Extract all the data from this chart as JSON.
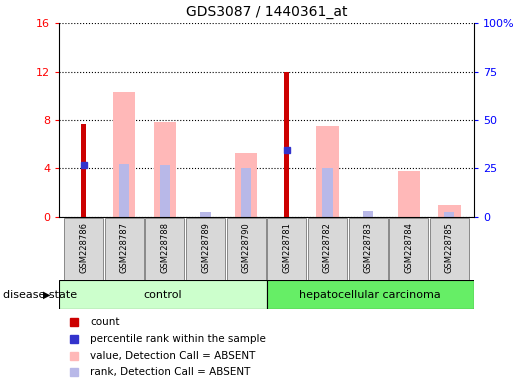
{
  "title": "GDS3087 / 1440361_at",
  "samples": [
    "GSM228786",
    "GSM228787",
    "GSM228788",
    "GSM228789",
    "GSM228790",
    "GSM228781",
    "GSM228782",
    "GSM228783",
    "GSM228784",
    "GSM228785"
  ],
  "groups": [
    "control",
    "control",
    "control",
    "control",
    "control",
    "hepatocellular carcinoma",
    "hepatocellular carcinoma",
    "hepatocellular carcinoma",
    "hepatocellular carcinoma",
    "hepatocellular carcinoma"
  ],
  "count_values": [
    7.7,
    0,
    0,
    0,
    0,
    12.0,
    0,
    0,
    0,
    0
  ],
  "rank_values": [
    4.3,
    0,
    0,
    0,
    0,
    5.5,
    0,
    0,
    0,
    0
  ],
  "pink_value_values": [
    0,
    10.3,
    7.8,
    0,
    5.3,
    0,
    7.5,
    0,
    3.8,
    1.0
  ],
  "lavender_rank_values": [
    0,
    4.4,
    4.3,
    0.4,
    4.0,
    0,
    4.0,
    0.5,
    0,
    0.4
  ],
  "ylim_left": [
    0,
    16
  ],
  "ylim_right": [
    0,
    100
  ],
  "yticks_left": [
    0,
    4,
    8,
    12,
    16
  ],
  "yticks_right": [
    0,
    25,
    50,
    75,
    100
  ],
  "ytick_labels_right": [
    "0",
    "25",
    "50",
    "75",
    "100%"
  ],
  "color_count": "#cc0000",
  "color_rank": "#3333cc",
  "color_pink": "#ffb8b8",
  "color_lavender": "#b8b8e8",
  "ctrl_color": "#ccffcc",
  "hcc_color": "#66ee66",
  "ctrl_n": 5,
  "hcc_n": 5,
  "disease_state_label": "disease state",
  "legend_items": [
    {
      "color": "#cc0000",
      "label": "count"
    },
    {
      "color": "#3333cc",
      "label": "percentile rank within the sample"
    },
    {
      "color": "#ffb8b8",
      "label": "value, Detection Call = ABSENT"
    },
    {
      "color": "#b8b8e8",
      "label": "rank, Detection Call = ABSENT"
    }
  ]
}
